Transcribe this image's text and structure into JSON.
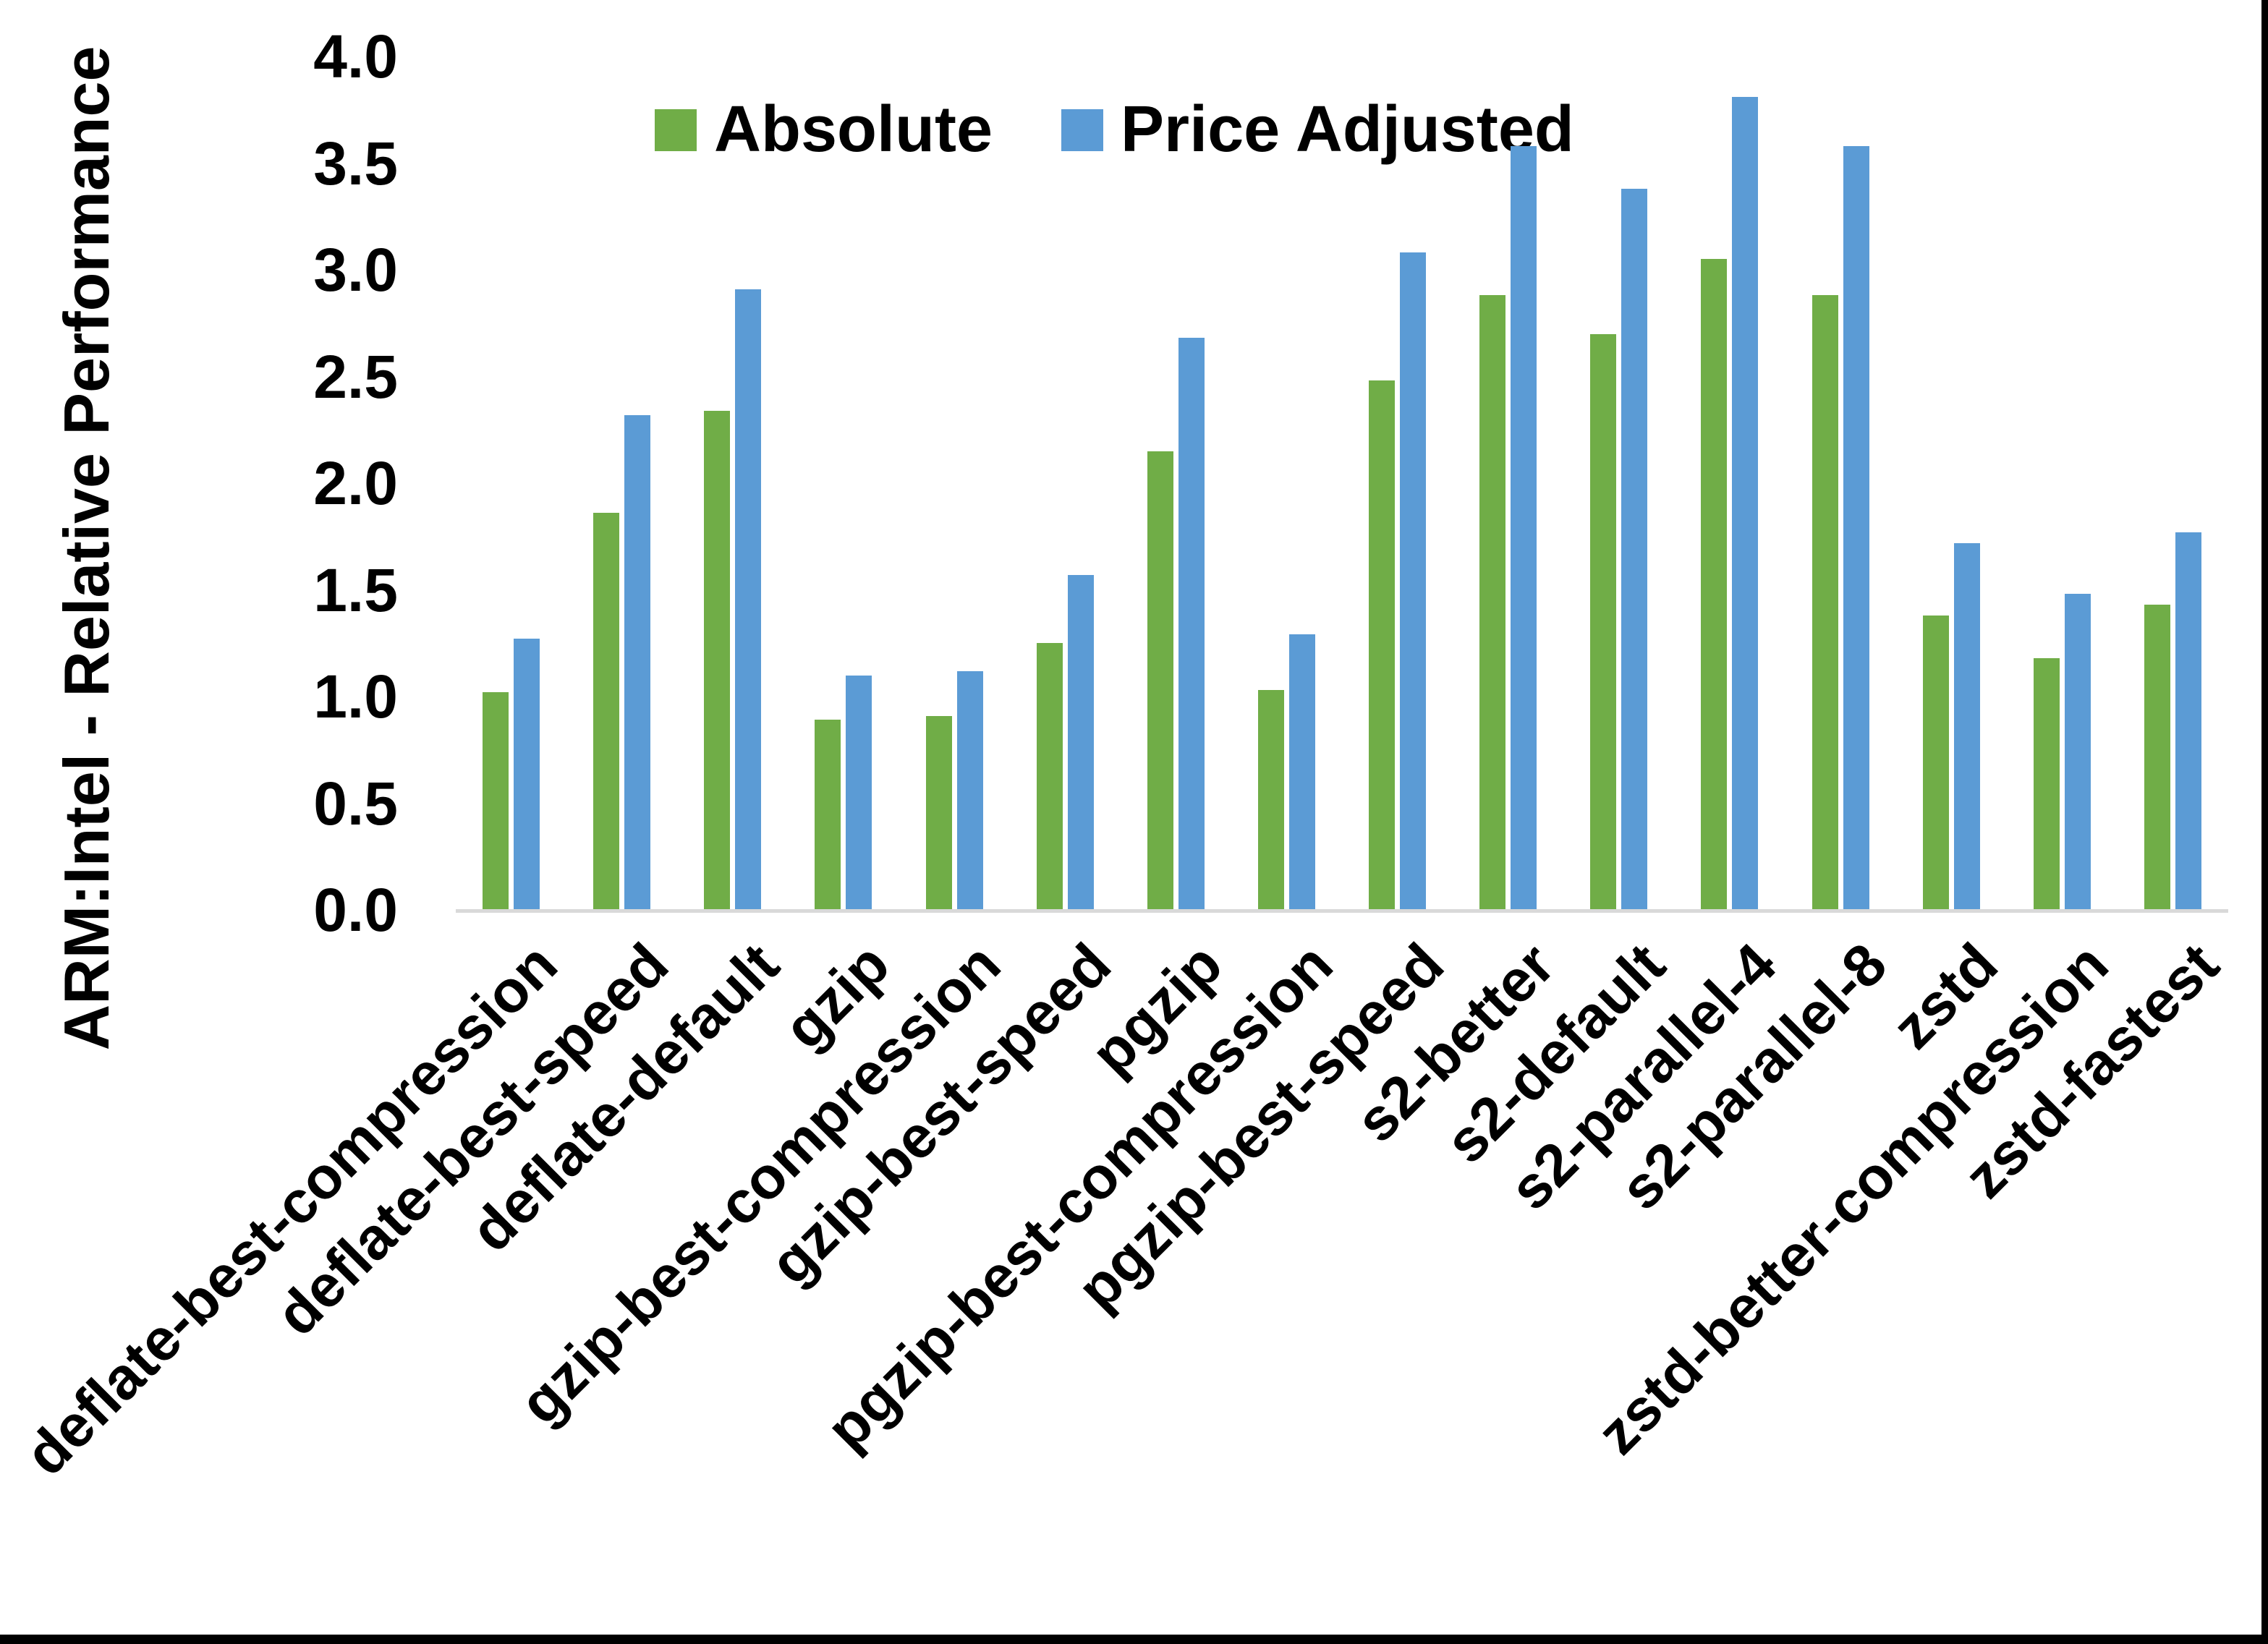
{
  "chart_data": {
    "type": "bar",
    "ylabel": "ARM:Intel - Relative Performance",
    "xlabel": "",
    "ylim": [
      0.0,
      4.0
    ],
    "ytick_step": 0.5,
    "ytick_labels": [
      "0.0",
      "0.5",
      "1.0",
      "1.5",
      "2.0",
      "2.5",
      "3.0",
      "3.5",
      "4.0"
    ],
    "grid": false,
    "legend_position": "top-center",
    "axis_line_color": "#d9d9d9",
    "categories": [
      "deflate-best-compression",
      "deflate-best-speed",
      "deflate-default",
      "gzip",
      "gzip-best-compression",
      "gzip-best-speed",
      "pgzip",
      "pgzip-best-compression",
      "pgzip-best-speed",
      "s2-better",
      "s2-default",
      "s2-parallel-4",
      "s2-parallel-8",
      "zstd",
      "zstd-better-compression",
      "zstd-fastest"
    ],
    "series": [
      {
        "name": "Absolute",
        "color": "#70AD47",
        "values": [
          1.02,
          1.86,
          2.34,
          0.89,
          0.91,
          1.25,
          2.15,
          1.03,
          2.48,
          2.88,
          2.7,
          3.05,
          2.88,
          1.38,
          1.18,
          1.43
        ]
      },
      {
        "name": "Price Adjusted",
        "color": "#5B9BD5",
        "values": [
          1.27,
          2.32,
          2.91,
          1.1,
          1.12,
          1.57,
          2.68,
          1.29,
          3.08,
          3.58,
          3.38,
          3.81,
          3.58,
          1.72,
          1.48,
          1.77
        ]
      }
    ]
  }
}
